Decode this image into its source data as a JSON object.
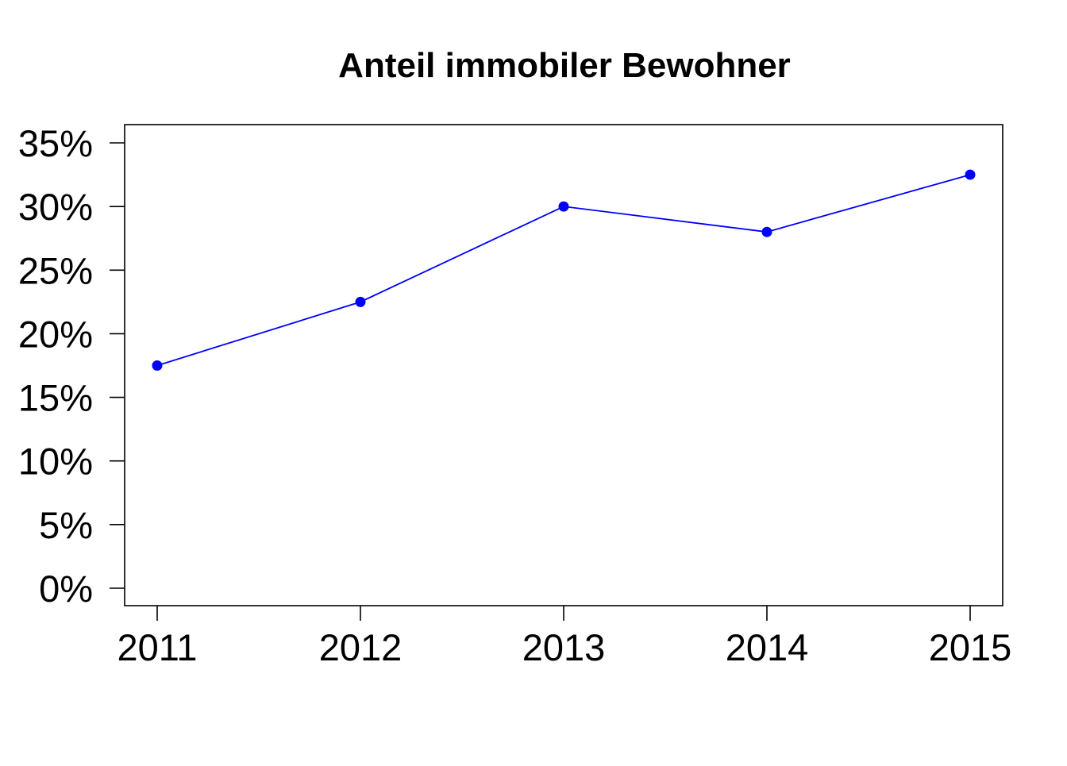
{
  "chart_data": {
    "type": "line",
    "title": "Anteil immobiler Bewohner",
    "xlabel": "",
    "ylabel": "",
    "categories": [
      "2011",
      "2012",
      "2013",
      "2014",
      "2015"
    ],
    "series": [
      {
        "values": [
          17.5,
          22.5,
          30,
          28,
          32.5
        ],
        "color": "#0000ff"
      }
    ],
    "ylim": [
      0,
      35
    ],
    "y_ticks": [
      0,
      5,
      10,
      15,
      20,
      25,
      30,
      35
    ],
    "y_tick_labels": [
      "0%",
      "5%",
      "10%",
      "15%",
      "20%",
      "25%",
      "30%",
      "35%"
    ],
    "grid": false,
    "legend": "none"
  }
}
